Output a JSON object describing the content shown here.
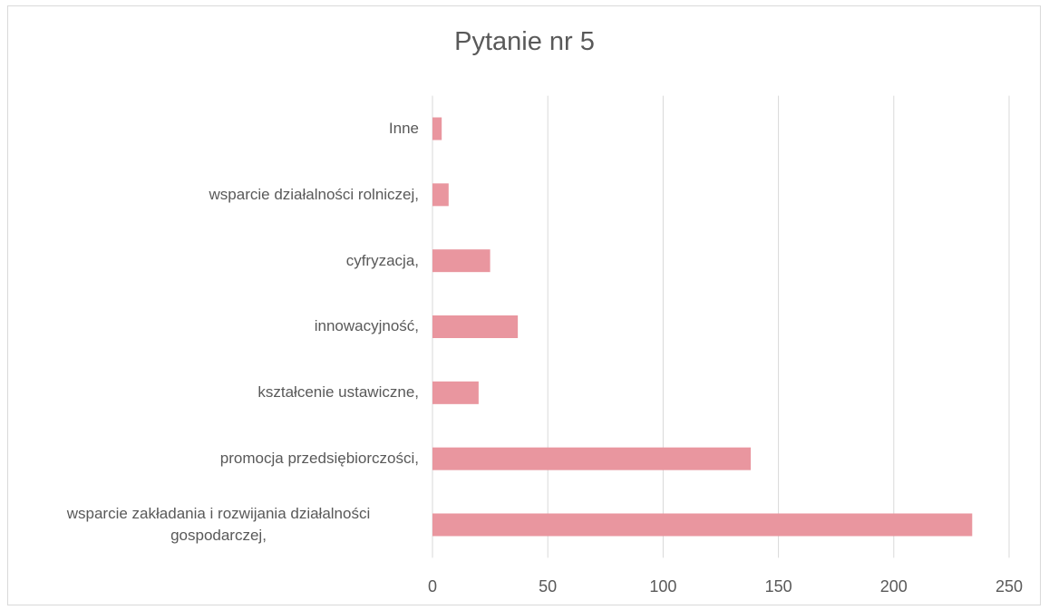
{
  "chart_data": {
    "type": "barh",
    "title": "Pytanie nr 5",
    "categories": [
      "wsparcie zakładania i rozwijania działalności gospodarczej,",
      "promocja przedsiębiorczości,",
      "kształcenie ustawiczne,",
      "innowacyjność,",
      "cyfryzacja,",
      "wsparcie działalności rolniczej,",
      "Inne"
    ],
    "values": [
      234,
      138,
      20,
      37,
      25,
      7,
      4
    ],
    "color": "#e9969f",
    "xlim": [
      0,
      250
    ],
    "xticks": [
      0,
      50,
      100,
      150,
      200,
      250
    ],
    "grid": true
  }
}
